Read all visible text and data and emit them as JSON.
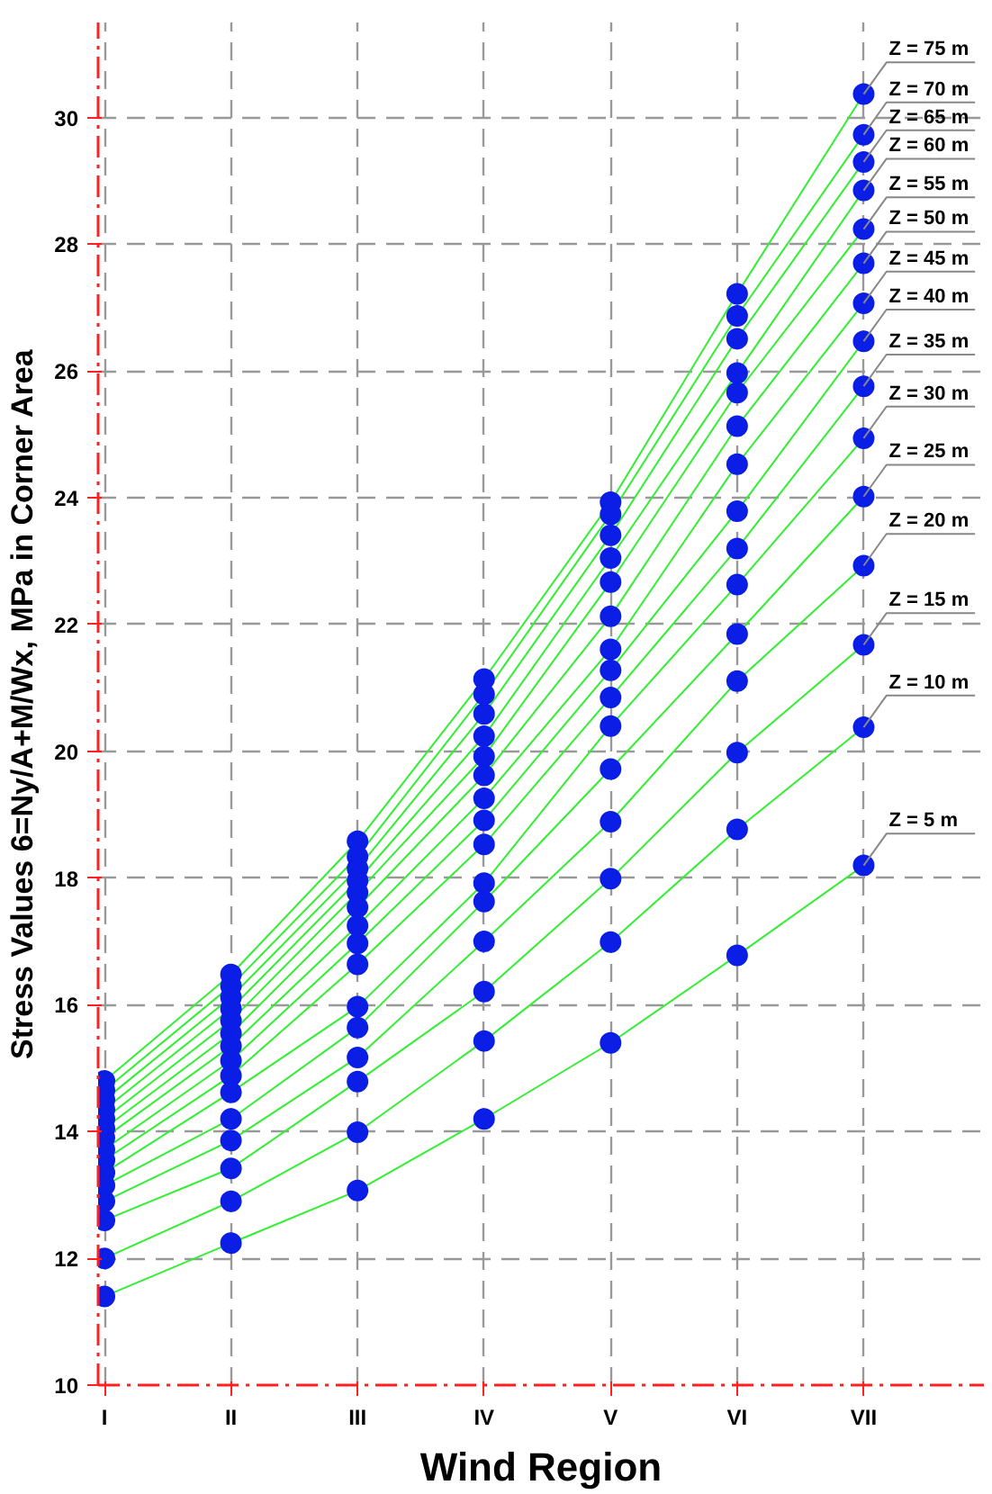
{
  "chart_data": {
    "type": "line",
    "xlabel": "Wind Region",
    "ylabel": "Stress Values 6=Ny/A+M/Wx, MPa in Corner Area",
    "categories": [
      "I",
      "II",
      "III",
      "IV",
      "V",
      "VI",
      "VII"
    ],
    "ylim": [
      10,
      31.5
    ],
    "yticks": [
      10,
      12,
      14,
      16,
      18,
      20,
      22,
      24,
      26,
      28,
      30
    ],
    "grid": true,
    "marker": "circle",
    "line_style": "solid",
    "series": [
      {
        "name": "Z = 75 m",
        "color": "#33ee33",
        "values": [
          14.8,
          16.48,
          18.58,
          21.14,
          23.93,
          27.22,
          30.37
        ]
      },
      {
        "name": "Z = 70 m",
        "color": "#33ee33",
        "values": [
          14.65,
          16.3,
          18.34,
          20.9,
          23.74,
          26.87,
          29.73
        ]
      },
      {
        "name": "Z = 65 m",
        "color": "#33ee33",
        "values": [
          14.5,
          16.12,
          18.15,
          20.59,
          23.41,
          26.51,
          29.3
        ]
      },
      {
        "name": "Z = 60 m",
        "color": "#33ee33",
        "values": [
          14.35,
          15.94,
          17.96,
          20.24,
          23.05,
          25.97,
          28.85
        ]
      },
      {
        "name": "Z = 55 m",
        "color": "#33ee33",
        "values": [
          14.2,
          15.75,
          17.77,
          19.92,
          22.67,
          25.66,
          28.24
        ]
      },
      {
        "name": "Z = 50 m",
        "color": "#33ee33",
        "values": [
          14.05,
          15.55,
          17.54,
          19.62,
          22.13,
          25.13,
          27.7
        ]
      },
      {
        "name": "Z = 45 m",
        "color": "#33ee33",
        "values": [
          13.9,
          15.35,
          17.25,
          19.26,
          21.61,
          24.53,
          27.07
        ]
      },
      {
        "name": "Z = 40 m",
        "color": "#33ee33",
        "values": [
          13.72,
          15.12,
          16.97,
          18.91,
          21.28,
          23.79,
          26.47
        ]
      },
      {
        "name": "Z = 35 m",
        "color": "#33ee33",
        "values": [
          13.55,
          14.88,
          16.64,
          18.53,
          20.85,
          23.2,
          25.76
        ]
      },
      {
        "name": "Z = 30 m",
        "color": "#33ee33",
        "values": [
          13.35,
          14.62,
          15.97,
          17.92,
          20.4,
          22.63,
          24.94
        ]
      },
      {
        "name": "Z = 25 m",
        "color": "#33ee33",
        "values": [
          13.15,
          14.2,
          15.64,
          17.63,
          19.72,
          21.85,
          24.02
        ]
      },
      {
        "name": "Z = 20 m",
        "color": "#33ee33",
        "values": [
          12.9,
          13.86,
          15.17,
          17.0,
          18.89,
          21.11,
          22.93
        ]
      },
      {
        "name": "Z = 15 m",
        "color": "#33ee33",
        "values": [
          12.6,
          13.42,
          14.79,
          16.21,
          17.99,
          19.98,
          21.68
        ]
      },
      {
        "name": "Z = 10 m",
        "color": "#33ee33",
        "values": [
          12.0,
          12.9,
          13.99,
          15.43,
          16.99,
          18.77,
          20.38
        ]
      },
      {
        "name": "Z = 5 m",
        "color": "#33ee33",
        "values": [
          11.4,
          12.24,
          13.07,
          14.2,
          15.4,
          16.78,
          18.2
        ]
      }
    ]
  }
}
